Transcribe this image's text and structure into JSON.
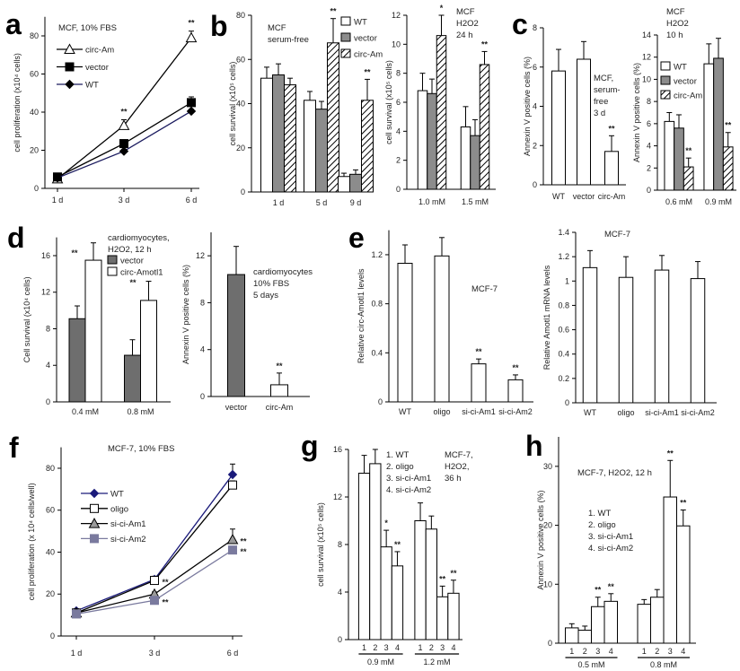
{
  "panel_labels": [
    "a",
    "b",
    "c",
    "d",
    "e",
    "f",
    "g",
    "h"
  ],
  "chart_data": [
    {
      "panel": "a",
      "type": "line",
      "categories": [
        "1 d",
        "3 d",
        "6 d"
      ],
      "ylim": [
        0,
        90
      ],
      "yticks": [
        0,
        20,
        40,
        60,
        80
      ],
      "ylabel": "cell proliferation (x10⁴ cells)",
      "annotation": [
        "MCF, 10% FBS"
      ],
      "legend": true,
      "series": [
        {
          "name": "circ-Am",
          "values": [
            5,
            33,
            79
          ],
          "errors": [
            1,
            3,
            3.5
          ],
          "marker": "triangle",
          "marker_fill": "#ffffff",
          "color": "#000000",
          "stars": [
            "",
            "**",
            "**"
          ]
        },
        {
          "name": "vector",
          "values": [
            6,
            23.5,
            45
          ],
          "errors": [
            1,
            2,
            3
          ],
          "marker": "square",
          "marker_fill": "#000000",
          "color": "#000000",
          "stars": [
            "",
            "",
            ""
          ]
        },
        {
          "name": "WT",
          "values": [
            5.5,
            19.5,
            40.5
          ],
          "errors": [
            0.8,
            1,
            1
          ],
          "marker": "diamond",
          "marker_fill": "#000000",
          "color": "#1a1a5e",
          "stars": [
            "",
            "",
            ""
          ]
        }
      ]
    },
    {
      "panel": "b",
      "type": "bar",
      "categories": [
        "1 d",
        "5 d",
        "9 d"
      ],
      "ylim": [
        0,
        80
      ],
      "yticks": [
        0,
        20,
        40,
        60,
        80
      ],
      "ylabel": "cell survival (x10⁵ cells)",
      "annotation": [
        "MCF",
        "serum-free"
      ],
      "legend": true,
      "series": [
        {
          "name": "WT",
          "values": [
            51.5,
            41.5,
            7
          ],
          "errors": [
            5,
            4,
            1.5
          ],
          "fill": "#ffffff",
          "stars": [
            "",
            "",
            ""
          ]
        },
        {
          "name": "vector",
          "values": [
            53,
            37.5,
            8
          ],
          "errors": [
            5,
            3.5,
            2
          ],
          "fill": "#8c8c8c",
          "stars": [
            "",
            "",
            ""
          ]
        },
        {
          "name": "circ-Am",
          "values": [
            48.5,
            67.5,
            41.5
          ],
          "errors": [
            3,
            11,
            9.5
          ],
          "fill": "hatch",
          "stars": [
            "",
            "**",
            "**"
          ]
        }
      ]
    },
    {
      "panel": "b",
      "type": "bar",
      "categories": [
        "1.0 mM",
        "1.5 mM"
      ],
      "ylim": [
        0,
        12
      ],
      "yticks": [
        0,
        2,
        4,
        6,
        8,
        10,
        12
      ],
      "ylabel": "cell survival (x10⁵ cells)",
      "annotation": [
        "MCF",
        "H2O2",
        "24 h"
      ],
      "legend": false,
      "series": [
        {
          "name": "WT",
          "values": [
            6.8,
            4.3
          ],
          "errors": [
            1.2,
            1.4
          ],
          "fill": "#ffffff",
          "stars": [
            "",
            ""
          ]
        },
        {
          "name": "vector",
          "values": [
            6.6,
            3.7
          ],
          "errors": [
            1,
            1.1
          ],
          "fill": "#8c8c8c",
          "stars": [
            "",
            ""
          ]
        },
        {
          "name": "circ-Am",
          "values": [
            10.6,
            8.6
          ],
          "errors": [
            1.4,
            0.9
          ],
          "fill": "hatch",
          "stars": [
            "*",
            "**"
          ]
        }
      ]
    },
    {
      "panel": "c",
      "type": "bar",
      "categories": [
        "WT",
        "vector",
        "circ-Am"
      ],
      "ylim": [
        0,
        8
      ],
      "yticks": [
        0,
        2,
        4,
        6,
        8
      ],
      "ylabel": "Annexin V positive cells (%)",
      "annotation": [
        "MCF,",
        "serum-",
        "free",
        " 3 d"
      ],
      "legend": false,
      "series": [
        {
          "values": [
            5.8,
            6.4,
            1.7
          ],
          "errors": [
            1.1,
            0.9,
            0.8
          ],
          "fill": "#ffffff",
          "stars": [
            "",
            "",
            "**"
          ]
        }
      ]
    },
    {
      "panel": "c",
      "type": "bar",
      "categories": [
        "0.6 mM",
        "0.9 mM"
      ],
      "ylim": [
        0,
        14
      ],
      "yticks": [
        0,
        2,
        4,
        6,
        8,
        10,
        12,
        14
      ],
      "ylabel": "Annexin V positive cells (%)",
      "annotation": [
        "MCF",
        "H2O2",
        "10 h"
      ],
      "legend": true,
      "series": [
        {
          "name": "WT",
          "values": [
            6.2,
            11.4
          ],
          "errors": [
            0.8,
            1.8
          ],
          "fill": "#ffffff",
          "stars": [
            "",
            ""
          ]
        },
        {
          "name": "vector",
          "values": [
            5.6,
            11.9
          ],
          "errors": [
            1.2,
            1.8
          ],
          "fill": "#8c8c8c",
          "stars": [
            "",
            ""
          ]
        },
        {
          "name": "circ-Am",
          "values": [
            2.1,
            3.9
          ],
          "errors": [
            0.8,
            1.3
          ],
          "fill": "hatch",
          "stars": [
            "**",
            "**"
          ]
        }
      ]
    },
    {
      "panel": "d",
      "type": "bar",
      "categories": [
        "0.4 mM",
        "0.8 mM"
      ],
      "ylim": [
        0,
        18
      ],
      "yticks": [
        0,
        4,
        8,
        12,
        16
      ],
      "ylabel": "Cell survival (x10⁴ cells)",
      "annotation": [
        "cardiomyocytes,",
        "H2O2, 12 h"
      ],
      "legend": true,
      "group_stars": [
        "**",
        "**"
      ],
      "series": [
        {
          "name": "vector",
          "values": [
            9.1,
            5.1
          ],
          "errors": [
            1.4,
            1.7
          ],
          "fill": "#6e6e6e",
          "stars": [
            "",
            ""
          ]
        },
        {
          "name": "circ-Amotl1",
          "values": [
            15.5,
            11.1
          ],
          "errors": [
            1.9,
            2.1
          ],
          "fill": "#ffffff",
          "stars": [
            "",
            ""
          ]
        }
      ]
    },
    {
      "panel": "d",
      "type": "bar",
      "categories": [
        "vector",
        "circ-Am"
      ],
      "ylim": [
        0,
        14
      ],
      "yticks": [
        0,
        4,
        8,
        12
      ],
      "ylabel": "Annexin V positive cells (%)",
      "annotation": [
        "cardiomyocytes",
        "10% FBS",
        "5 days"
      ],
      "legend": false,
      "series": [
        {
          "values": [
            10.4,
            1.0
          ],
          "errors": [
            2.4,
            1.0
          ],
          "fills": [
            "#6e6e6e",
            "#ffffff"
          ],
          "fill": "#ffffff",
          "stars": [
            "",
            "**"
          ]
        }
      ]
    },
    {
      "panel": "e",
      "type": "bar",
      "categories": [
        "WT",
        "oligo",
        "si-ci-Am1",
        "si-ci-Am2"
      ],
      "ylim": [
        0,
        1.4
      ],
      "yticks": [
        0,
        0.4,
        0.8,
        1.2
      ],
      "ylabel": "Relative circ-Amotl1 levels",
      "annotation": [
        "MCF-7"
      ],
      "legend": false,
      "series": [
        {
          "values": [
            1.13,
            1.19,
            0.31,
            0.18
          ],
          "errors": [
            0.15,
            0.15,
            0.04,
            0.04
          ],
          "fill": "#ffffff",
          "stars": [
            "",
            "",
            "**",
            "**"
          ]
        }
      ]
    },
    {
      "panel": "e",
      "type": "bar",
      "categories": [
        "WT",
        "oligo",
        "si-ci-Am1",
        "si-ci-Am2"
      ],
      "ylim": [
        0,
        1.4
      ],
      "yticks": [
        0,
        0.2,
        0.4,
        0.6,
        0.8,
        1,
        1.2,
        1.4
      ],
      "ylabel": "Relative Amotl1 mRNA levels",
      "annotation": [
        "MCF-7"
      ],
      "legend": false,
      "series": [
        {
          "values": [
            1.11,
            1.03,
            1.09,
            1.02
          ],
          "errors": [
            0.14,
            0.17,
            0.12,
            0.14
          ],
          "fill": "#ffffff",
          "stars": [
            "",
            "",
            "",
            ""
          ]
        }
      ]
    },
    {
      "panel": "f",
      "type": "line",
      "categories": [
        "1 d",
        "3 d",
        "6 d"
      ],
      "ylim": [
        0,
        90
      ],
      "yticks": [
        0,
        20,
        40,
        60,
        80
      ],
      "ylabel": "cell proliferation (x 10⁴ cells/well)",
      "annotation": [
        "MCF-7, 10% FBS"
      ],
      "legend": true,
      "series": [
        {
          "name": "WT",
          "values": [
            12,
            27,
            77
          ],
          "errors": [
            1,
            1.5,
            5
          ],
          "marker": "diamond",
          "marker_fill": "#1a1a7a",
          "color": "#1a1a7a",
          "stars": [
            "",
            "",
            ""
          ]
        },
        {
          "name": "oligo",
          "values": [
            11,
            26.5,
            72
          ],
          "errors": [
            1,
            1.5,
            2
          ],
          "marker": "square",
          "marker_fill": "#ffffff",
          "color": "#000000",
          "stars": [
            "",
            "**",
            ""
          ]
        },
        {
          "name": "si-ci-Am1",
          "values": [
            11,
            20,
            46
          ],
          "errors": [
            1,
            1,
            5
          ],
          "marker": "triangle",
          "marker_fill": "#9a9a9a",
          "color": "#000000",
          "stars": [
            "",
            "",
            "**"
          ]
        },
        {
          "name": "si-ci-Am2",
          "values": [
            10.5,
            17,
            41
          ],
          "errors": [
            1,
            1,
            1
          ],
          "marker": "square",
          "marker_fill": "#7a7a9e",
          "color": "#7a7a9e",
          "stars": [
            "",
            "**",
            "**"
          ]
        }
      ]
    },
    {
      "panel": "g",
      "type": "bar",
      "categories": [
        "0.9 mM",
        "1.2 mM"
      ],
      "bar_labels": [
        "1",
        "2",
        "3",
        "4"
      ],
      "ylim": [
        0,
        16
      ],
      "yticks": [
        0,
        4,
        8,
        12,
        16
      ],
      "ylabel": "cell survival (x10⁵ cells)",
      "annotation": [
        "MCF-7,",
        "H2O2,",
        "36 h"
      ],
      "key": [
        "1. WT",
        "2. oligo",
        "3. si-ci-Am1",
        "4. si-ci-Am2"
      ],
      "legend": false,
      "series": [
        {
          "values": [
            14,
            10
          ],
          "errors": [
            1.5,
            1.5
          ],
          "fill": "#ffffff",
          "stars": [
            "",
            ""
          ]
        },
        {
          "values": [
            14.8,
            9.3
          ],
          "errors": [
            1.2,
            1.1
          ],
          "fill": "#ffffff",
          "stars": [
            "",
            ""
          ]
        },
        {
          "values": [
            7.8,
            3.6
          ],
          "errors": [
            1.4,
            0.9
          ],
          "fill": "#ffffff",
          "stars": [
            "*",
            "**"
          ]
        },
        {
          "values": [
            6.2,
            3.9
          ],
          "errors": [
            1.2,
            1.1
          ],
          "fill": "#ffffff",
          "stars": [
            "**",
            "**"
          ]
        }
      ]
    },
    {
      "panel": "h",
      "type": "bar",
      "categories": [
        "0.5 mM",
        "0.8 mM"
      ],
      "bar_labels": [
        "1",
        "2",
        "3",
        "4"
      ],
      "ylim": [
        0,
        35
      ],
      "yticks": [
        0,
        10,
        20,
        30
      ],
      "ylabel": "Annexin V positive cells (%)",
      "annotation": [
        "MCF-7, H2O2, 12 h"
      ],
      "key": [
        "1. WT",
        "2. oligo",
        "3. si-ci-Am1",
        "4. si-ci-Am2"
      ],
      "legend": false,
      "series": [
        {
          "values": [
            2.6,
            6.6
          ],
          "errors": [
            0.7,
            0.8
          ],
          "fill": "#ffffff",
          "stars": [
            "",
            ""
          ]
        },
        {
          "values": [
            2.2,
            7.8
          ],
          "errors": [
            0.7,
            1.3
          ],
          "fill": "#ffffff",
          "stars": [
            "",
            ""
          ]
        },
        {
          "values": [
            6.2,
            24.8
          ],
          "errors": [
            1.6,
            6.2
          ],
          "fill": "#ffffff",
          "stars": [
            "**",
            "**"
          ]
        },
        {
          "values": [
            7.1,
            19.9
          ],
          "errors": [
            1.3,
            2.7
          ],
          "fill": "#ffffff",
          "stars": [
            "**",
            "**"
          ]
        }
      ]
    }
  ]
}
